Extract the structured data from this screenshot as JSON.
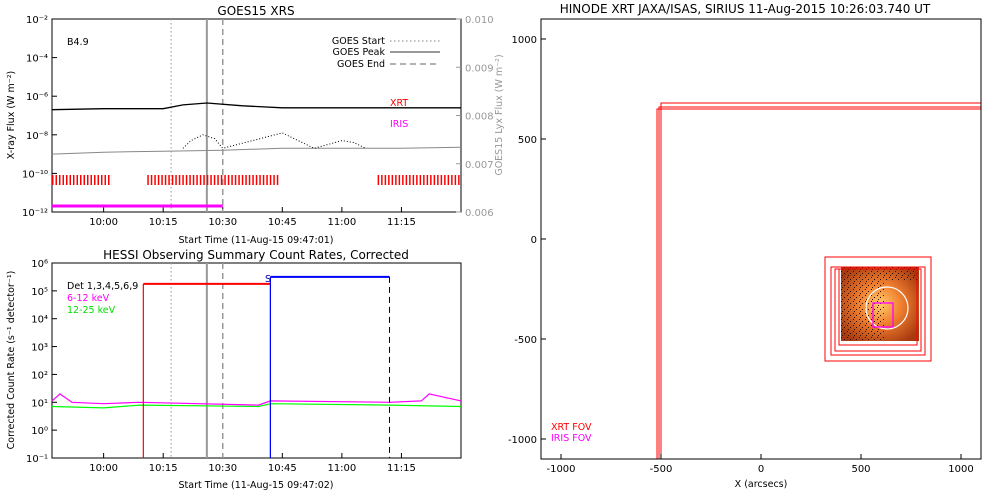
{
  "chart_data": [
    {
      "type": "line",
      "title": "GOES15 XRS",
      "xlabel": "Start Time (11-Aug-15 09:47:01)",
      "ylabel": "X-ray Flux (W m⁻²)",
      "ylabel_right": "GOES15 Lyx Flux (W m⁻²)",
      "x_range": [
        "09:47",
        "11:30"
      ],
      "x_ticks": [
        "10:00",
        "10:15",
        "10:30",
        "10:45",
        "11:00",
        "11:15"
      ],
      "y_log_range_exp": [
        -12,
        -2
      ],
      "y_ticks": [
        "10⁻¹²",
        "10⁻¹⁰",
        "10⁻⁸",
        "10⁻⁶",
        "10⁻⁴",
        "10⁻²"
      ],
      "y_right_range": [
        0.006,
        0.01
      ],
      "y_right_ticks": [
        "0.006",
        "0.007",
        "0.008",
        "0.009",
        "0.010"
      ],
      "class_label": "B4.9",
      "legend": [
        "GOES Start",
        "GOES Peak",
        "GOES End"
      ],
      "markers": {
        "start": "10:17",
        "peak": "10:26",
        "end": "10:30"
      },
      "series": [
        {
          "name": "XRT",
          "color": "#ff0000",
          "type": "coverage",
          "segments": [
            [
              "09:47",
              "10:02"
            ],
            [
              "10:11",
              "10:44"
            ],
            [
              "11:09",
              "11:30"
            ]
          ]
        },
        {
          "name": "IRIS",
          "color": "#ff00ff",
          "type": "coverage",
          "segments": [
            [
              "09:47",
              "10:30"
            ]
          ]
        },
        {
          "name": "long",
          "color": "#000000",
          "x": [
            "09:47",
            "10:00",
            "10:15",
            "10:20",
            "10:26",
            "10:35",
            "10:45",
            "11:00",
            "11:15",
            "11:30"
          ],
          "log_y": [
            -6.7,
            -6.65,
            -6.65,
            -6.45,
            -6.35,
            -6.5,
            -6.6,
            -6.6,
            -6.6,
            -6.6
          ]
        },
        {
          "name": "short",
          "color": "#888888",
          "x": [
            "09:47",
            "10:00",
            "10:15",
            "10:30",
            "10:45",
            "11:00",
            "11:15",
            "11:30"
          ],
          "log_y": [
            -9.0,
            -8.9,
            -8.85,
            -8.8,
            -8.7,
            -8.7,
            -8.7,
            -8.65
          ]
        },
        {
          "name": "lyx",
          "color": "#000000",
          "style": "dotted",
          "x": [
            "10:20",
            "10:22",
            "10:25",
            "10:28",
            "10:30",
            "10:45",
            "10:49",
            "10:53",
            "11:00",
            "11:03",
            "11:06"
          ],
          "log_y": [
            -8.7,
            -8.3,
            -8.0,
            -8.2,
            -8.7,
            -7.9,
            -8.3,
            -8.7,
            -8.3,
            -8.4,
            -8.7
          ]
        }
      ]
    },
    {
      "type": "line",
      "title": "HESSI Observing Summary Count Rates, Corrected",
      "xlabel": "Start Time (11-Aug-15 09:47:02)",
      "ylabel": "Corrected Count Rate (s⁻¹ detector⁻¹)",
      "x_range": [
        "09:47",
        "11:30"
      ],
      "x_ticks": [
        "10:00",
        "10:15",
        "10:30",
        "10:45",
        "11:00",
        "11:15"
      ],
      "y_log_range_exp": [
        -1,
        6
      ],
      "y_ticks": [
        "10⁻¹",
        "10⁰",
        "10¹",
        "10²",
        "10³",
        "10⁴",
        "10⁵",
        "10⁶"
      ],
      "legend": [
        "Det 1,3,4,5,6,9",
        "6-12 keV",
        "12-25 keV"
      ],
      "saa_label": "S",
      "series": [
        {
          "name": "6-12 keV",
          "color": "#ff00ff",
          "x": [
            "09:47",
            "09:49",
            "09:52",
            "10:00",
            "10:09",
            "10:39",
            "10:42",
            "11:12",
            "11:20",
            "11:22",
            "11:30"
          ],
          "log_y": [
            1.05,
            1.3,
            1.0,
            0.95,
            1.0,
            0.9,
            1.05,
            1.0,
            1.05,
            1.3,
            1.05
          ]
        },
        {
          "name": "12-25 keV",
          "color": "#00ff00",
          "x": [
            "09:47",
            "10:00",
            "10:09",
            "10:39",
            "10:42",
            "11:12",
            "11:30"
          ],
          "log_y": [
            0.85,
            0.8,
            0.9,
            0.85,
            0.95,
            0.9,
            0.85
          ]
        },
        {
          "name": "night",
          "color": "#ff0000",
          "type": "interval",
          "x": [
            "10:10",
            "10:42"
          ],
          "log_level": 5.25
        },
        {
          "name": "saa",
          "color": "#0000ff",
          "type": "interval",
          "x": [
            "10:42",
            "11:12"
          ],
          "log_level": 5.5
        }
      ]
    },
    {
      "type": "scatter",
      "title": "HINODE XRT JAXA/ISAS, SIRIUS 11-Aug-2015 10:26:03.740 UT",
      "xlabel": "X (arcsecs)",
      "ylabel": "",
      "xlim": [
        -1100,
        1100
      ],
      "ylim": [
        -1100,
        1100
      ],
      "x_ticks": [
        "-1000",
        "-500",
        "0",
        "500",
        "1000"
      ],
      "y_ticks": [
        "-1000",
        "-500",
        "0",
        "500",
        "1000"
      ],
      "legend": [
        "XRT FOV",
        "IRIS FOV"
      ],
      "colors": {
        "xrt": "#ff0000",
        "iris": "#ff00ff"
      },
      "fov_boxes": [
        {
          "x0": -520,
          "y0": -1100,
          "x1": 1100,
          "y1": 650
        },
        {
          "x0": -510,
          "y0": -1100,
          "x1": 1100,
          "y1": 660
        },
        {
          "x0": -500,
          "y0": -1100,
          "x1": 1100,
          "y1": 680
        },
        {
          "x0": 320,
          "y0": -610,
          "x1": 850,
          "y1": -90
        },
        {
          "x0": 350,
          "y0": -580,
          "x1": 820,
          "y1": -140
        },
        {
          "x0": 370,
          "y0": -560,
          "x1": 800,
          "y1": -150
        },
        {
          "x0": 390,
          "y0": -530,
          "x1": 780,
          "y1": -150
        }
      ],
      "image_box": {
        "x0": 400,
        "y0": -510,
        "x1": 790,
        "y1": -140
      },
      "iris_box": {
        "x0": 560,
        "y0": -440,
        "x1": 660,
        "y1": -320
      },
      "circle": {
        "cx": 630,
        "cy": -345,
        "r": 105
      }
    }
  ]
}
